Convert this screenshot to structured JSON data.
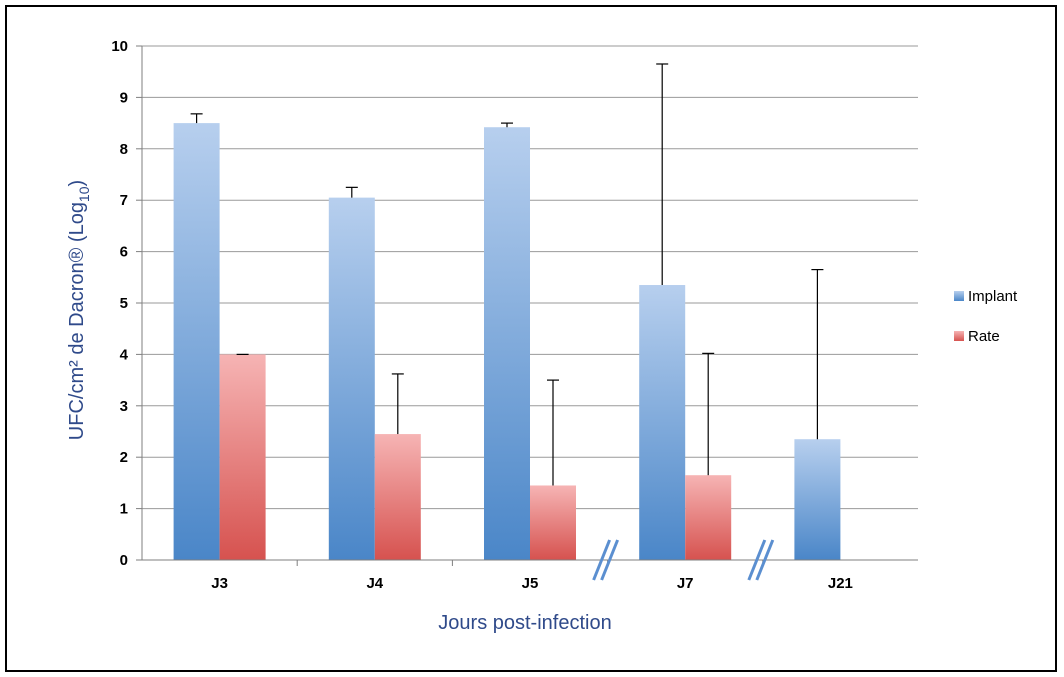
{
  "chart_data": {
    "type": "bar",
    "categories": [
      "J3",
      "J4",
      "J5",
      "J7",
      "J21"
    ],
    "series": [
      {
        "name": "Implant",
        "values": [
          8.5,
          7.05,
          8.42,
          5.35,
          2.35
        ],
        "error_upper": [
          8.68,
          7.25,
          8.5,
          9.65,
          5.65
        ],
        "color_top": "#b7cfee",
        "color_bottom": "#4a86c8"
      },
      {
        "name": "Rate",
        "values": [
          4.0,
          2.45,
          1.45,
          1.65,
          0.0
        ],
        "error_upper": [
          4.0,
          3.62,
          3.5,
          4.02,
          0.0
        ],
        "color_top": "#f6b4b4",
        "color_bottom": "#d6524f"
      }
    ],
    "ylim": [
      0,
      10
    ],
    "yticks": [
      "0",
      "1",
      "2",
      "3",
      "4",
      "5",
      "6",
      "7",
      "8",
      "9",
      "10"
    ],
    "xlabel": "Jours post-infection",
    "ylabel_main": "UFC/cm² de Dacron® (Log",
    "ylabel_sub": "10",
    "ylabel_end": ")",
    "axis_breaks": [
      "J5-J7",
      "J7-J21"
    ],
    "grid": true,
    "legend_position": "right",
    "break_color": "#5b8fd0"
  }
}
